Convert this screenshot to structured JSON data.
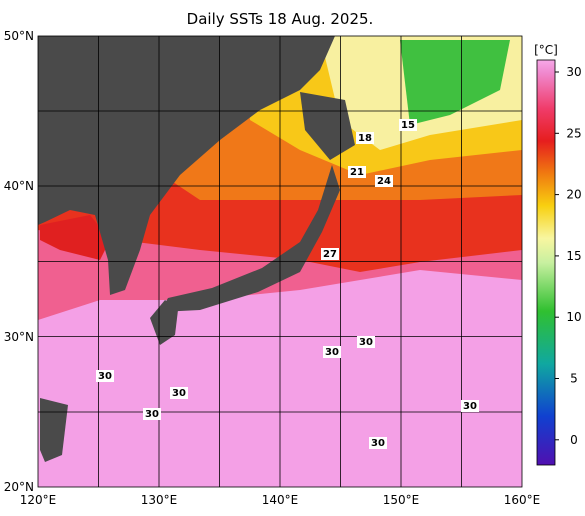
{
  "title": "Daily SSTs 18 Aug. 2025.",
  "lon_labels": [
    "120°E",
    "130°E",
    "140°E",
    "150°E",
    "160°E"
  ],
  "lat_labels": [
    "50°N",
    "40°N",
    "30°N",
    "20°N"
  ],
  "colorbar": {
    "unit": "[°C]",
    "labels": [
      "30",
      "25",
      "20",
      "15",
      "10",
      "5",
      "0"
    ]
  },
  "contour_labels": [
    "15",
    "18",
    "21",
    "24",
    "27",
    "30",
    "30",
    "30",
    "30",
    "30",
    "30",
    "30"
  ]
}
